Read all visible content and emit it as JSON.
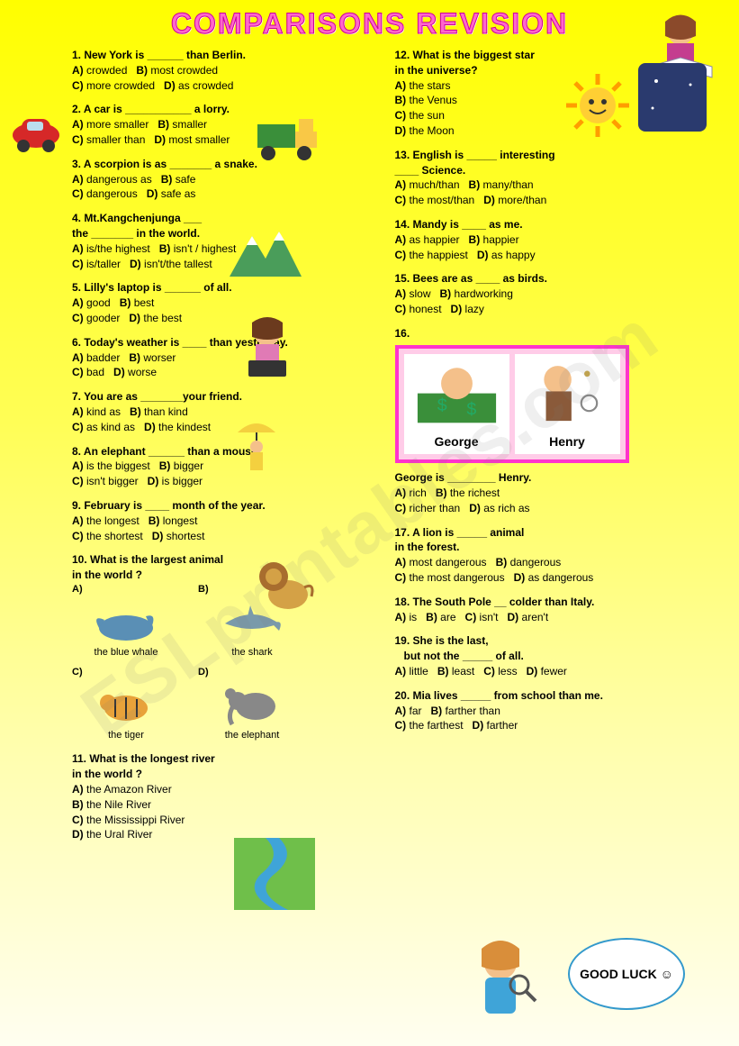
{
  "title": "COMPARISONS REVISION",
  "watermark": "ESLprintables.com",
  "goodluck": "GOOD LUCK ☺",
  "left": [
    {
      "n": "1",
      "q": "New York is ______ than Berlin.",
      "opts": [
        [
          "A)",
          "crowded"
        ],
        [
          "B)",
          "most crowded"
        ],
        [
          "C)",
          "more crowded"
        ],
        [
          "D)",
          "as crowded"
        ]
      ]
    },
    {
      "n": "2",
      "q": "A car is ___________ a lorry.",
      "opts": [
        [
          "A)",
          "more smaller"
        ],
        [
          "B)",
          "smaller"
        ],
        [
          "C)",
          "smaller than"
        ],
        [
          "D)",
          "most smaller"
        ]
      ]
    },
    {
      "n": "3",
      "q": "A scorpion is as _______ a snake.",
      "opts": [
        [
          "A)",
          "dangerous as"
        ],
        [
          "B)",
          "safe"
        ],
        [
          "C)",
          "dangerous"
        ],
        [
          "D)",
          "safe as"
        ]
      ]
    },
    {
      "n": "4",
      "q": "Mt.Kangchenjunga ___<br>the _______ in the world.",
      "opts": [
        [
          "A)",
          "is/the highest"
        ],
        [
          "B)",
          "isn't / highest"
        ],
        [
          "C)",
          "is/taller"
        ],
        [
          "D)",
          "isn't/the tallest"
        ]
      ]
    },
    {
      "n": "5",
      "q": "Lilly's laptop is ______ of all.",
      "opts": [
        [
          "A)",
          "good"
        ],
        [
          "B)",
          "best"
        ],
        [
          "C)",
          "gooder"
        ],
        [
          "D)",
          "the best"
        ]
      ]
    },
    {
      "n": "6",
      "q": "Today's weather is ____ than yesterday.",
      "opts": [
        [
          "A)",
          "badder"
        ],
        [
          "B)",
          "worser"
        ],
        [
          "C)",
          "bad"
        ],
        [
          "D)",
          "worse"
        ]
      ]
    },
    {
      "n": "7",
      "q": "You are as _______your friend.",
      "opts": [
        [
          "A)",
          "kind as"
        ],
        [
          "B)",
          "than kind"
        ],
        [
          "C)",
          "as kind as"
        ],
        [
          "D)",
          "the kindest"
        ]
      ]
    },
    {
      "n": "8",
      "q": "An elephant ______ than a mouse.",
      "opts": [
        [
          "A)",
          "is the biggest"
        ],
        [
          "B)",
          "bigger"
        ],
        [
          "C)",
          "isn't bigger"
        ],
        [
          "D)",
          "is bigger"
        ]
      ]
    },
    {
      "n": "9",
      "q": "February is ____ month of the year.",
      "opts": [
        [
          "A)",
          "the longest"
        ],
        [
          "B)",
          "longest"
        ],
        [
          "C)",
          "the shortest"
        ],
        [
          "D)",
          "shortest"
        ]
      ]
    },
    {
      "n": "10",
      "q": "What is the largest animal<br>in the world ?",
      "animals": [
        [
          "A)",
          "the blue whale"
        ],
        [
          "B)",
          "the shark"
        ],
        [
          "C)",
          "the tiger"
        ],
        [
          "D)",
          "the elephant"
        ]
      ]
    },
    {
      "n": "11",
      "q": "What is the longest river<br>in the world ?",
      "opts": [
        [
          "A)",
          "the Amazon River"
        ],
        [
          "B)",
          "the Nile River"
        ],
        [
          "C)",
          "the Mississippi River"
        ],
        [
          "D)",
          "the Ural River"
        ]
      ],
      "block": true
    }
  ],
  "right": [
    {
      "n": "12",
      "q": "What is the biggest star<br>in the universe?",
      "opts": [
        [
          "A)",
          "the stars"
        ],
        [
          "B)",
          "the Venus"
        ],
        [
          "C)",
          "the sun"
        ],
        [
          "D)",
          "the Moon"
        ]
      ],
      "block": true
    },
    {
      "n": "13",
      "q": "English is _____ interesting<br>____ Science.",
      "opts": [
        [
          "A)",
          "much/than"
        ],
        [
          "B)",
          "many/than"
        ],
        [
          "C)",
          "the most/than"
        ],
        [
          "D)",
          "more/than"
        ]
      ]
    },
    {
      "n": "14",
      "q": "Mandy is ____ as me.",
      "opts": [
        [
          "A)",
          "as happier"
        ],
        [
          "B)",
          "happier"
        ],
        [
          "C)",
          "the happiest"
        ],
        [
          "D)",
          "as happy"
        ]
      ]
    },
    {
      "n": "15",
      "q": "Bees are as ____ as birds.",
      "opts": [
        [
          "A)",
          "slow"
        ],
        [
          "B)",
          "hardworking"
        ],
        [
          "C)",
          "honest"
        ],
        [
          "D)",
          "lazy"
        ]
      ]
    },
    {
      "n": "16",
      "q": "",
      "gh": true,
      "ghnames": [
        "George",
        "Henry"
      ],
      "q2": "George is ________ Henry.",
      "opts": [
        [
          "A)",
          "rich"
        ],
        [
          "B)",
          "the richest"
        ],
        [
          "C)",
          "richer than"
        ],
        [
          "D)",
          "as rich as"
        ]
      ]
    },
    {
      "n": "17",
      "q": "A lion is _____ animal<br>in the forest.",
      "opts": [
        [
          "A)",
          "most dangerous"
        ],
        [
          "B)",
          "dangerous"
        ],
        [
          "C)",
          "the most dangerous"
        ],
        [
          "D)",
          "as dangerous"
        ]
      ]
    },
    {
      "n": "18",
      "q": "The South Pole __ colder than Italy.",
      "opts": [
        [
          "A)",
          "is"
        ],
        [
          "B)",
          "are"
        ],
        [
          "C)",
          "isn't"
        ],
        [
          "D)",
          "aren't"
        ]
      ],
      "inline": true
    },
    {
      "n": "19",
      "q": "She is the last,<br>&nbsp;&nbsp;&nbsp;but not the _____ of all.",
      "opts": [
        [
          "A)",
          "little"
        ],
        [
          "B)",
          "least"
        ],
        [
          "C)",
          "less"
        ],
        [
          "D)",
          "fewer"
        ]
      ],
      "inline": true
    },
    {
      "n": "20",
      "q": "Mia lives _____ from school than me.",
      "opts": [
        [
          "A)",
          "far"
        ],
        [
          "B)",
          "farther than"
        ],
        [
          "C)",
          "the farthest"
        ],
        [
          "D)",
          "farther"
        ]
      ]
    }
  ]
}
